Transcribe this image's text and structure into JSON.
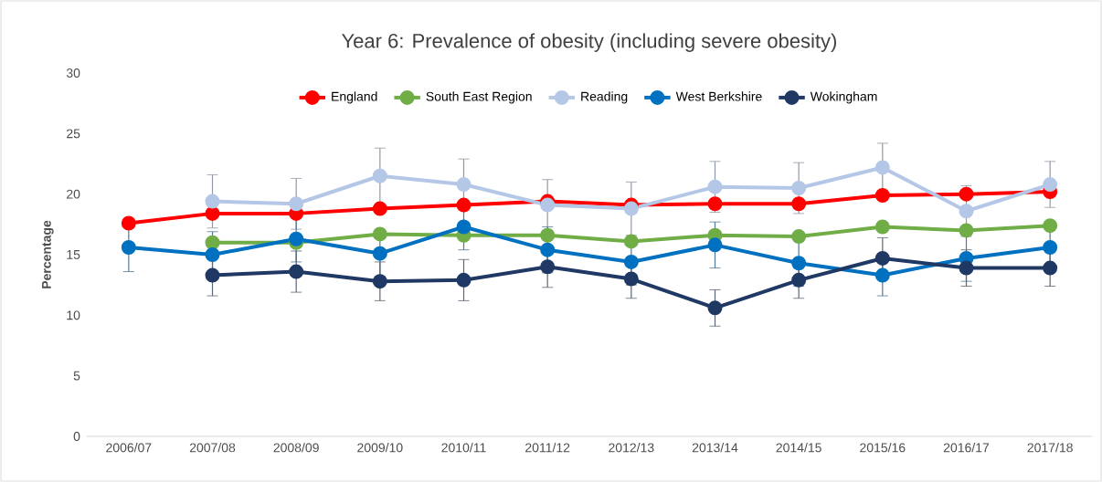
{
  "chart_data": {
    "type": "line",
    "title": "Year 6: Prevalence of obesity (including severe obesity)",
    "ylabel": "Percentage",
    "categories": [
      "2006/07",
      "2007/08",
      "2008/09",
      "2009/10",
      "2010/11",
      "2011/12",
      "2012/13",
      "2013/14",
      "2014/15",
      "2015/16",
      "2016/17",
      "2017/18"
    ],
    "ylim": [
      0,
      30
    ],
    "yticks": [
      0,
      5,
      10,
      15,
      20,
      25,
      30
    ],
    "grid": false,
    "legend": "top",
    "marker": "circle",
    "line_style": "solid",
    "series": [
      {
        "name": "England",
        "color": "#ff0000",
        "values": [
          17.6,
          18.4,
          18.4,
          18.8,
          19.1,
          19.4,
          19.1,
          19.2,
          19.2,
          19.9,
          20.0,
          20.2
        ]
      },
      {
        "name": "South East Region",
        "color": "#70ad47",
        "values": [
          null,
          16.0,
          16.0,
          16.7,
          16.6,
          16.6,
          16.1,
          16.6,
          16.5,
          17.3,
          17.0,
          17.4
        ]
      },
      {
        "name": "Reading",
        "color": "#b4c7e7",
        "values": [
          null,
          19.4,
          19.2,
          21.5,
          20.8,
          19.1,
          18.8,
          20.6,
          20.5,
          22.2,
          18.6,
          20.8
        ],
        "errors": [
          null,
          2.2,
          2.1,
          2.3,
          2.1,
          2.1,
          2.2,
          2.1,
          2.1,
          2.0,
          2.1,
          1.9
        ]
      },
      {
        "name": "West Berkshire",
        "color": "#0070c0",
        "values": [
          15.6,
          15.0,
          16.3,
          15.1,
          17.3,
          15.4,
          14.4,
          15.8,
          14.3,
          13.3,
          14.7,
          15.6
        ],
        "errors": [
          2.0,
          1.9,
          1.9,
          1.9,
          1.9,
          1.9,
          1.9,
          1.9,
          1.9,
          1.7,
          1.9,
          1.9
        ]
      },
      {
        "name": "Wokingham",
        "color": "#1f3864",
        "values": [
          null,
          13.3,
          13.6,
          12.8,
          12.9,
          14.0,
          13.0,
          10.6,
          12.9,
          14.7,
          13.9,
          13.9
        ],
        "errors": [
          null,
          1.7,
          1.7,
          1.6,
          1.7,
          1.7,
          1.6,
          1.5,
          1.5,
          1.7,
          1.5,
          1.5
        ]
      }
    ]
  }
}
